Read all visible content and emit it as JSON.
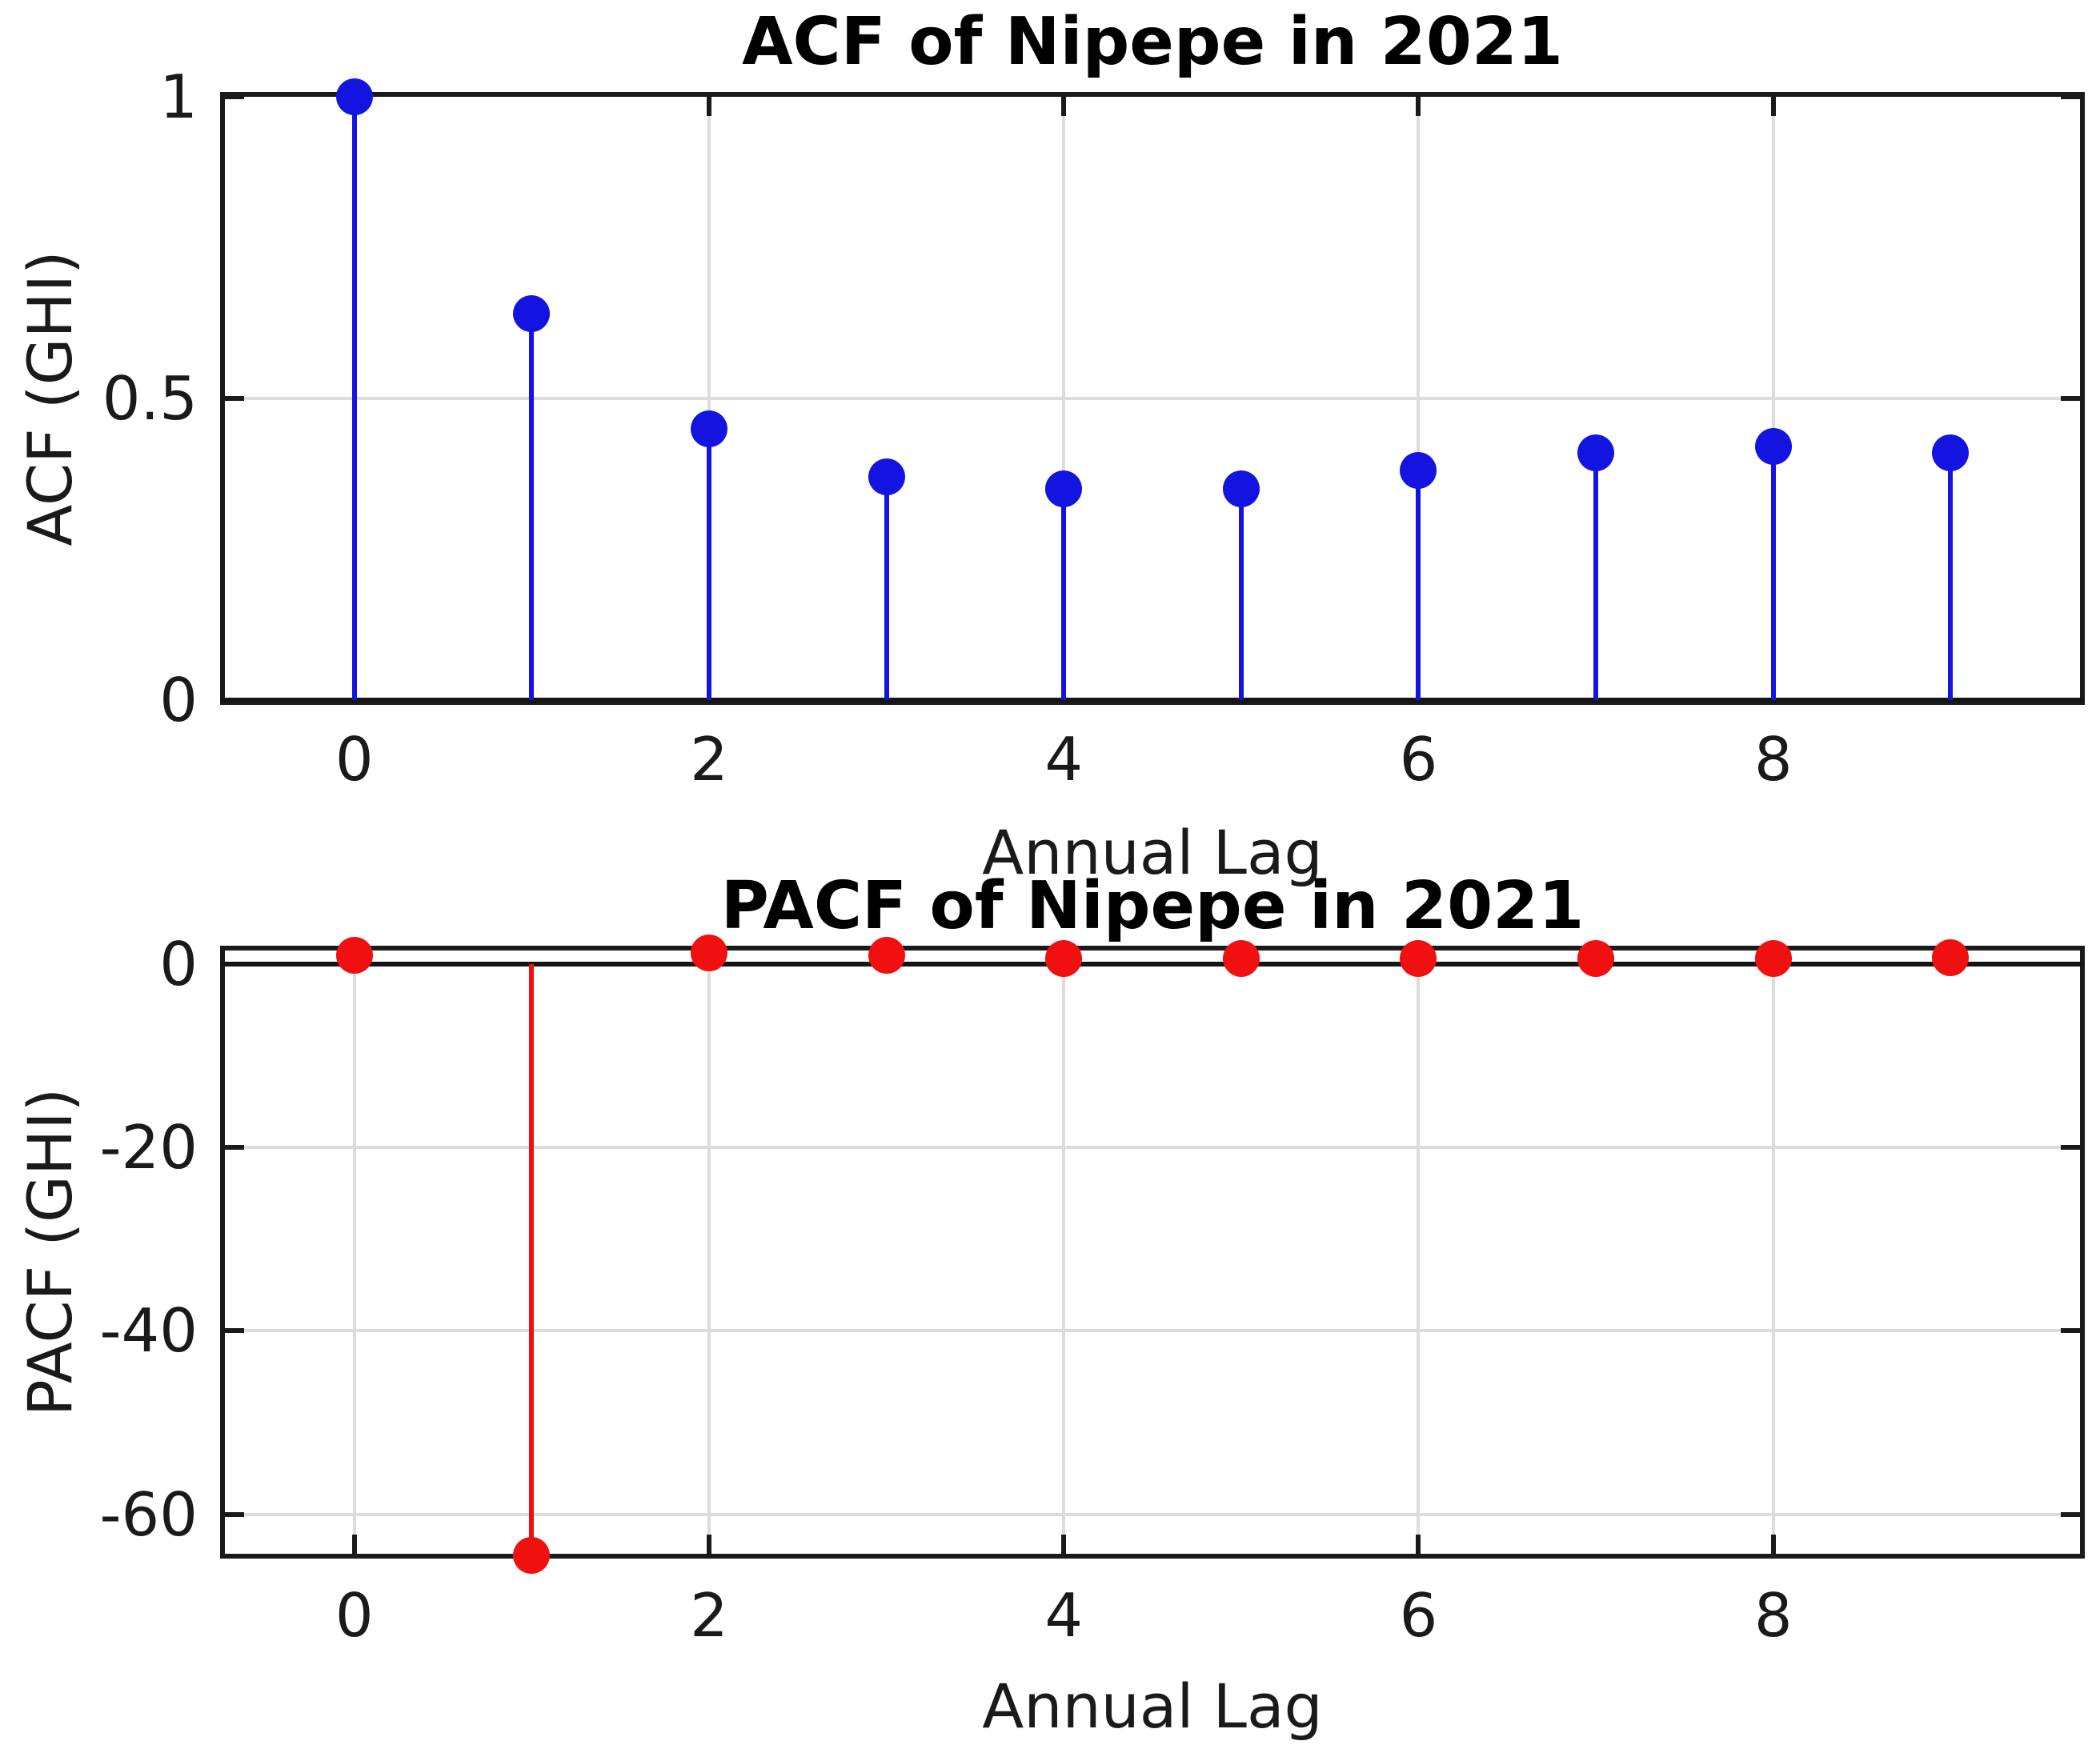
{
  "page": {
    "background": "#ffffff",
    "frame_color": "#1a1a1a",
    "grid_color": "#dcdcdc",
    "text_color": "#1a1a1a"
  },
  "chart_data": [
    {
      "type": "stem",
      "title": "ACF of Nipepe in 2021",
      "xlabel": "Annual Lag",
      "ylabel": "ACF (GHI)",
      "series_color": "#1414e0",
      "grid": true,
      "legend": null,
      "x": [
        0,
        1,
        2,
        3,
        4,
        5,
        6,
        7,
        8,
        9
      ],
      "values": [
        1.0,
        0.64,
        0.45,
        0.37,
        0.35,
        0.35,
        0.38,
        0.41,
        0.42,
        0.41
      ],
      "xlim": [
        -0.73,
        9.73
      ],
      "ylim": [
        0,
        1
      ],
      "baseline": 0,
      "xticks": [
        0,
        2,
        4,
        6,
        8
      ],
      "xtick_labels": [
        "0",
        "2",
        "4",
        "6",
        "8"
      ],
      "yticks": [
        0,
        0.5,
        1
      ],
      "ytick_labels": [
        "0",
        "0.5",
        "1"
      ]
    },
    {
      "type": "stem",
      "title": "PACF of Nipepe in 2021",
      "xlabel": "Annual Lag",
      "ylabel": "PACF (GHI)",
      "series_color": "#f01010",
      "grid": true,
      "legend": null,
      "x": [
        0,
        1,
        2,
        3,
        4,
        5,
        6,
        7,
        8,
        9
      ],
      "values": [
        1.0,
        -64.5,
        1.2,
        1.0,
        0.6,
        0.6,
        0.6,
        0.6,
        0.6,
        0.7
      ],
      "xlim": [
        -0.73,
        9.73
      ],
      "ylim": [
        -64.3,
        1.5
      ],
      "baseline": 0,
      "xticks": [
        0,
        2,
        4,
        6,
        8
      ],
      "xtick_labels": [
        "0",
        "2",
        "4",
        "6",
        "8"
      ],
      "yticks": [
        0,
        -20,
        -40,
        -60
      ],
      "ytick_labels": [
        "0",
        "-20",
        "-40",
        "-60"
      ]
    }
  ]
}
